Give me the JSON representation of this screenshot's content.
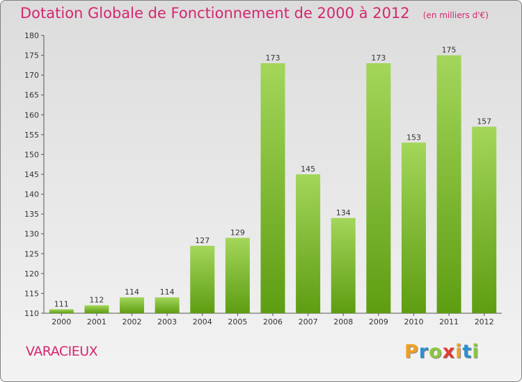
{
  "title": "Dotation Globale de Fonctionnement de 2000 à 2012",
  "unit": "(en milliers d'€)",
  "commune": "VARACIEUX",
  "brand": {
    "letters": [
      "P",
      "r",
      "o",
      "x",
      "i",
      "t",
      "i"
    ],
    "colors": [
      "#f0a020",
      "#2d8fd0",
      "#8cc63f",
      "#e53935",
      "#f0a020",
      "#2d8fd0",
      "#8cc63f"
    ]
  },
  "chart_data": {
    "type": "bar",
    "categories": [
      "2000",
      "2001",
      "2002",
      "2003",
      "2004",
      "2005",
      "2006",
      "2007",
      "2008",
      "2009",
      "2010",
      "2011",
      "2012"
    ],
    "values": [
      111,
      112,
      114,
      114,
      127,
      129,
      173,
      145,
      134,
      173,
      153,
      175,
      157
    ],
    "ylim": [
      110,
      180
    ],
    "yticks": [
      110,
      115,
      120,
      125,
      130,
      135,
      140,
      145,
      150,
      155,
      160,
      165,
      170,
      175,
      180
    ],
    "grid": false,
    "bar_color": "#7dbb2e"
  }
}
